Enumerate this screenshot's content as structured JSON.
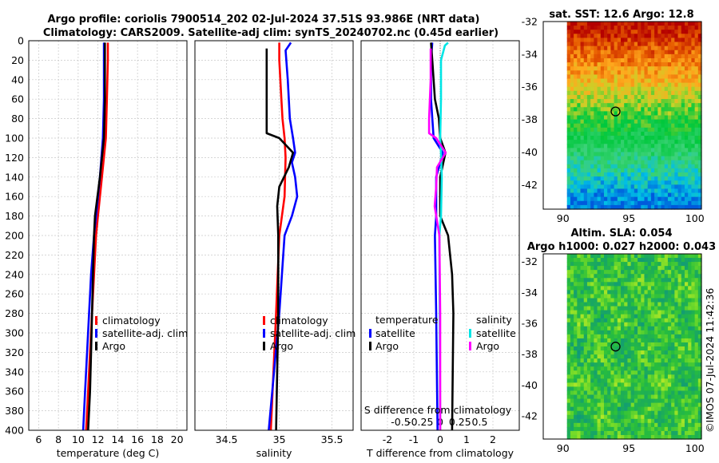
{
  "title": {
    "line1": "Argo profile: coriolis 7900514_202 02-Jul-2024 37.51S 93.986E (NRT data)",
    "line2": "Climatology: CARS2009. Satellite-adj clim: synTS_20240702.nc (0.45d earlier)"
  },
  "copyright": "©IMOS 07-Jul-2024 11:42:36",
  "colors": {
    "climatology": "#ff0000",
    "satellite": "#0000ff",
    "argo": "#000000",
    "sal_satellite": "#00e5e5",
    "sal_argo": "#ff00ff"
  },
  "chart_data": [
    {
      "type": "line",
      "title": "",
      "xlabel": "temperature (deg C)",
      "ylabel": "",
      "xlim": [
        5,
        21
      ],
      "ylim": [
        400,
        0
      ],
      "xticks": [
        6,
        8,
        10,
        12,
        14,
        16,
        18,
        20
      ],
      "yticks": [
        0,
        20,
        40,
        60,
        80,
        100,
        120,
        140,
        160,
        180,
        200,
        220,
        240,
        260,
        280,
        300,
        320,
        340,
        360,
        380,
        400
      ],
      "grid": true,
      "legend": [
        "climatology",
        "satellite-adj. clim",
        "Argo"
      ],
      "series": [
        {
          "name": "climatology",
          "depth": [
            2,
            20,
            60,
            100,
            140,
            180,
            200,
            240,
            280,
            320,
            360,
            400
          ],
          "values": [
            13.0,
            13.0,
            12.9,
            12.8,
            12.4,
            12.0,
            11.8,
            11.6,
            11.4,
            11.2,
            11.0,
            10.8
          ]
        },
        {
          "name": "satellite-adj. clim",
          "depth": [
            2,
            20,
            60,
            100,
            140,
            180,
            200,
            240,
            280,
            320,
            360,
            400
          ],
          "values": [
            12.6,
            12.6,
            12.6,
            12.5,
            12.2,
            11.8,
            11.6,
            11.3,
            11.1,
            10.9,
            10.7,
            10.5
          ]
        },
        {
          "name": "Argo",
          "depth": [
            2,
            20,
            60,
            100,
            140,
            180,
            200,
            240,
            280,
            320,
            360,
            400
          ],
          "values": [
            12.7,
            12.7,
            12.7,
            12.6,
            12.2,
            11.7,
            11.6,
            11.5,
            11.4,
            11.3,
            11.2,
            11.0
          ]
        }
      ]
    },
    {
      "type": "line",
      "xlabel": "salinity",
      "xlim": [
        34.2,
        35.7
      ],
      "ylim": [
        400,
        0
      ],
      "xticks": [
        34.5,
        35,
        35.5
      ],
      "grid": true,
      "legend": [
        "climatology",
        "satellite-adj. clim",
        "Argo"
      ],
      "series": [
        {
          "name": "climatology",
          "depth": [
            2,
            20,
            60,
            80,
            100,
            120,
            160,
            200,
            280,
            400
          ],
          "values": [
            35.0,
            35.0,
            35.02,
            35.03,
            35.05,
            35.06,
            35.05,
            35.0,
            34.97,
            34.92
          ]
        },
        {
          "name": "satellite-adj. clim",
          "depth": [
            2,
            10,
            40,
            80,
            100,
            115,
            125,
            140,
            160,
            180,
            200,
            280,
            400
          ],
          "values": [
            35.11,
            35.06,
            35.08,
            35.1,
            35.13,
            35.15,
            35.12,
            35.15,
            35.17,
            35.12,
            35.05,
            35.0,
            34.9
          ]
        },
        {
          "name": "Argo",
          "depth": [
            8,
            40,
            80,
            95,
            100,
            115,
            130,
            150,
            170,
            200,
            280,
            400
          ],
          "values": [
            34.88,
            34.88,
            34.88,
            34.88,
            35.0,
            35.13,
            35.09,
            35.0,
            34.98,
            34.99,
            34.99,
            34.97
          ]
        }
      ]
    },
    {
      "type": "line",
      "xlabel": "T difference from climatology",
      "xlabel_top": "S difference from climatology",
      "xlim": [
        -3.0,
        3.0
      ],
      "ylim": [
        400,
        0
      ],
      "xticks": [
        -2,
        -1,
        0,
        1,
        2
      ],
      "xticks_top_labels": [
        "-0.5",
        "-0.25",
        "0",
        "0.25",
        "0.5"
      ],
      "xticks_top_values": [
        -0.5,
        -0.25,
        0,
        0.25,
        0.5
      ],
      "grid": true,
      "legend_temperature": {
        "header": "temperature",
        "entries": [
          "satellite",
          "Argo"
        ]
      },
      "legend_salinity": {
        "header": "salinity",
        "entries": [
          "satellite",
          "Argo"
        ]
      },
      "series": [
        {
          "name": "temperature satellite",
          "var": "T",
          "depth": [
            2,
            20,
            60,
            100,
            115,
            140,
            180,
            200,
            280,
            400
          ],
          "values": [
            -0.3,
            -0.35,
            -0.35,
            -0.25,
            0.1,
            -0.15,
            -0.15,
            -0.2,
            -0.15,
            -0.1
          ]
        },
        {
          "name": "temperature Argo",
          "var": "T",
          "depth": [
            2,
            20,
            60,
            80,
            100,
            115,
            140,
            180,
            200,
            240,
            280,
            400
          ],
          "values": [
            -0.35,
            -0.3,
            -0.2,
            -0.05,
            0.0,
            0.2,
            0.0,
            0.0,
            0.3,
            0.45,
            0.5,
            0.45
          ]
        },
        {
          "name": "salinity satellite",
          "var": "S",
          "depth": [
            2,
            5,
            20,
            60,
            100,
            115,
            140,
            180,
            200,
            400
          ],
          "values": [
            0.1,
            0.06,
            0.01,
            0.01,
            0.0,
            0.01,
            0.02,
            0.01,
            -0.01,
            0.0
          ]
        },
        {
          "name": "salinity Argo",
          "var": "S",
          "depth": [
            8,
            40,
            80,
            95,
            100,
            115,
            130,
            150,
            170,
            200,
            280,
            400
          ],
          "values": [
            -0.12,
            -0.12,
            -0.14,
            -0.14,
            -0.05,
            0.07,
            -0.04,
            -0.05,
            -0.07,
            -0.01,
            0.0,
            0.0
          ]
        }
      ]
    },
    {
      "type": "heatmap",
      "title": "sat. SST: 12.6 Argo: 12.8",
      "xlim": [
        88.5,
        100.5
      ],
      "ylim": [
        -43.5,
        -32
      ],
      "xticks": [
        90,
        95,
        100
      ],
      "yticks": [
        -32,
        -34,
        -36,
        -38,
        -40,
        -42
      ],
      "marker": {
        "lon": 93.986,
        "lat": -37.51
      }
    },
    {
      "type": "heatmap",
      "title": "Altim. SLA: 0.054",
      "subtitle": "Argo h1000: 0.027 h2000: 0.043",
      "xlim": [
        88.5,
        100.5
      ],
      "ylim": [
        -43.5,
        -31.5
      ],
      "xticks": [
        90,
        95,
        100
      ],
      "yticks": [
        -32,
        -34,
        -36,
        -38,
        -40,
        -42
      ],
      "marker": {
        "lon": 93.986,
        "lat": -37.51
      }
    }
  ]
}
